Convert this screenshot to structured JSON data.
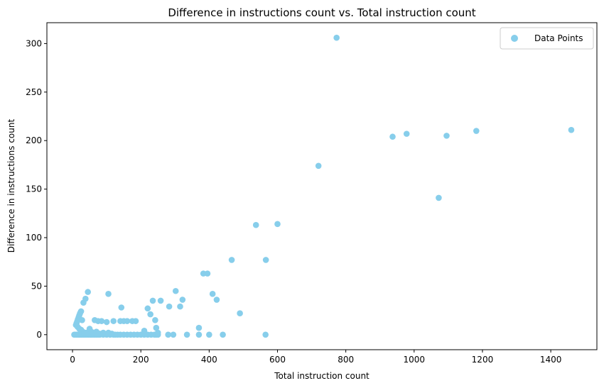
{
  "chart_data": {
    "type": "scatter",
    "title": "Difference in instructions count vs. Total instruction count",
    "xlabel": "Total instruction count",
    "ylabel": "Difference in instructions count",
    "xlim": [
      -75,
      1535
    ],
    "ylim": [
      -15.5,
      321.5
    ],
    "xticks": [
      0,
      200,
      400,
      600,
      800,
      1000,
      1200,
      1400
    ],
    "yticks": [
      0,
      50,
      100,
      150,
      200,
      250,
      300
    ],
    "grid": false,
    "legend_position": "top-right",
    "series": [
      {
        "name": "Data Points",
        "color": "#87ceeb",
        "points": [
          [
            5,
            0
          ],
          [
            8,
            0
          ],
          [
            12,
            0
          ],
          [
            15,
            0
          ],
          [
            18,
            0
          ],
          [
            20,
            0
          ],
          [
            22,
            0
          ],
          [
            25,
            0
          ],
          [
            28,
            0
          ],
          [
            32,
            0
          ],
          [
            35,
            0
          ],
          [
            40,
            0
          ],
          [
            45,
            0
          ],
          [
            48,
            0
          ],
          [
            52,
            0
          ],
          [
            55,
            0
          ],
          [
            60,
            0
          ],
          [
            65,
            0
          ],
          [
            70,
            0
          ],
          [
            75,
            0
          ],
          [
            80,
            0
          ],
          [
            90,
            0
          ],
          [
            100,
            0
          ],
          [
            110,
            0
          ],
          [
            120,
            0
          ],
          [
            125,
            0
          ],
          [
            132,
            0
          ],
          [
            140,
            0
          ],
          [
            150,
            0
          ],
          [
            160,
            0
          ],
          [
            170,
            0
          ],
          [
            180,
            0
          ],
          [
            190,
            0
          ],
          [
            200,
            0
          ],
          [
            210,
            0
          ],
          [
            220,
            0
          ],
          [
            230,
            0
          ],
          [
            240,
            0
          ],
          [
            245,
            0
          ],
          [
            250,
            0
          ],
          [
            280,
            0
          ],
          [
            295,
            0
          ],
          [
            335,
            0
          ],
          [
            370,
            0
          ],
          [
            400,
            0
          ],
          [
            440,
            0
          ],
          [
            565,
            0
          ],
          [
            10,
            10
          ],
          [
            12,
            12
          ],
          [
            14,
            14
          ],
          [
            16,
            16
          ],
          [
            18,
            18
          ],
          [
            20,
            20
          ],
          [
            22,
            22
          ],
          [
            25,
            24
          ],
          [
            28,
            15
          ],
          [
            32,
            33
          ],
          [
            38,
            37
          ],
          [
            45,
            44
          ],
          [
            15,
            8
          ],
          [
            20,
            6
          ],
          [
            25,
            5
          ],
          [
            30,
            3
          ],
          [
            35,
            2
          ],
          [
            40,
            2
          ],
          [
            50,
            6
          ],
          [
            55,
            3
          ],
          [
            60,
            2
          ],
          [
            70,
            3
          ],
          [
            80,
            1
          ],
          [
            90,
            2
          ],
          [
            105,
            2
          ],
          [
            115,
            1
          ],
          [
            65,
            15
          ],
          [
            75,
            14
          ],
          [
            85,
            14
          ],
          [
            100,
            13
          ],
          [
            120,
            14
          ],
          [
            140,
            14
          ],
          [
            150,
            14
          ],
          [
            160,
            14
          ],
          [
            175,
            14
          ],
          [
            185,
            14
          ],
          [
            105,
            42
          ],
          [
            143,
            28
          ],
          [
            210,
            4
          ],
          [
            220,
            27
          ],
          [
            228,
            21
          ],
          [
            235,
            35
          ],
          [
            242,
            15
          ],
          [
            245,
            7
          ],
          [
            250,
            2
          ],
          [
            258,
            35
          ],
          [
            283,
            29
          ],
          [
            302,
            45
          ],
          [
            315,
            29
          ],
          [
            322,
            36
          ],
          [
            370,
            7
          ],
          [
            383,
            63
          ],
          [
            395,
            63
          ],
          [
            410,
            42
          ],
          [
            422,
            36
          ],
          [
            466,
            77
          ],
          [
            490,
            22
          ],
          [
            537,
            113
          ],
          [
            566,
            77
          ],
          [
            600,
            114
          ],
          [
            720,
            174
          ],
          [
            773,
            306
          ],
          [
            937,
            204
          ],
          [
            978,
            207
          ],
          [
            1072,
            141
          ],
          [
            1095,
            205
          ],
          [
            1182,
            210
          ],
          [
            1460,
            211
          ]
        ]
      }
    ]
  }
}
